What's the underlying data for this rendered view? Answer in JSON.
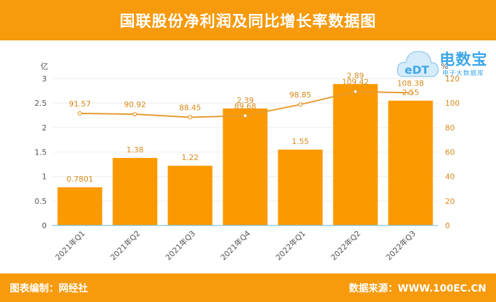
{
  "header": {
    "title": "国联股份净利润及同比增长率数据图"
  },
  "footer": {
    "left": "图表编制：网经社",
    "right": "数据来源：WWW.100EC.CN"
  },
  "logo": {
    "text": "电数宝",
    "sub": "电子大数据库"
  },
  "colors": {
    "accent": "#f79a0c",
    "bar": "#fb9a00",
    "line": "#e59a2e",
    "label": "#d88a1a"
  },
  "chart_data": {
    "type": "bar",
    "categories": [
      "2021年Q1",
      "2021年Q2",
      "2021年Q3",
      "2021年Q4",
      "2022年Q1",
      "2022年Q2",
      "2022年Q3"
    ],
    "series": [
      {
        "values": [
          0.7801,
          1.38,
          1.22,
          2.39,
          1.55,
          2.89,
          2.55
        ],
        "value_labels": [
          "0.7801",
          "1.38",
          "1.22",
          "2.39",
          "1.55",
          "2.89",
          "2.55"
        ]
      },
      {
        "type": "line",
        "values": [
          91.57,
          90.92,
          88.45,
          89.68,
          98.85,
          109.42,
          108.38
        ],
        "value_labels": [
          "91.57",
          "90.92",
          "88.45",
          "89.68",
          "98.85",
          "109.42",
          "108.38"
        ]
      }
    ],
    "ylabel": "亿",
    "y2label": "%",
    "ylim": [
      0,
      3
    ],
    "y2lim": [
      0,
      120
    ],
    "yticks": [
      "0",
      "0.5",
      "1",
      "1.5",
      "2",
      "2.5",
      "3"
    ],
    "y2ticks": [
      "0",
      "20",
      "40",
      "60",
      "80",
      "100",
      "120"
    ],
    "grid": true,
    "legend": "none"
  }
}
